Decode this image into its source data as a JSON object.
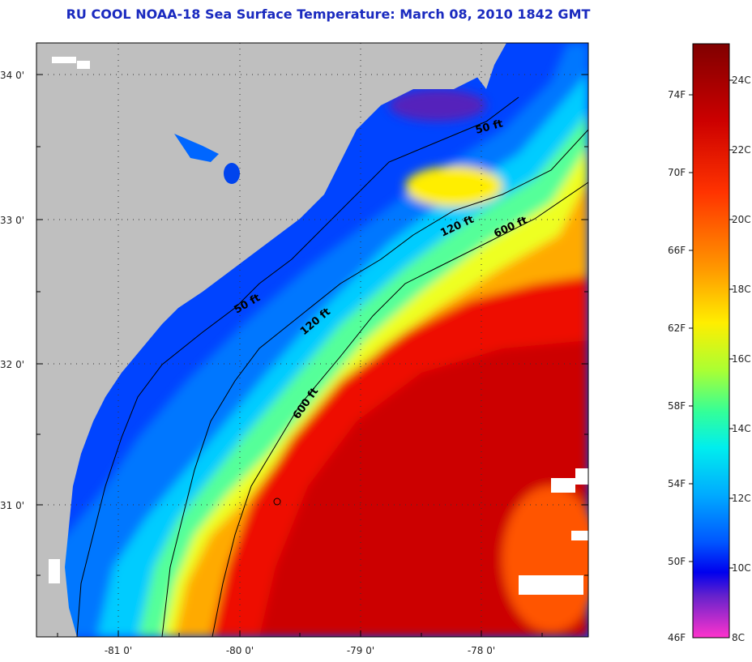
{
  "title": "RU COOL  NOAA-18  Sea Surface Temperature:  March 08, 2010 1842 GMT",
  "axes": {
    "lat_ticks": [
      "34 0'",
      "33 0'",
      "32 0'",
      "31 0'"
    ],
    "lon_ticks": [
      "-81 0'",
      "-80 0'",
      "-79 0'",
      "-78 0'"
    ]
  },
  "isobaths": [
    "50 ft",
    "50 ft",
    "120 ft",
    "120 ft",
    "600 ft",
    "600 ft"
  ],
  "colorbar": {
    "fahrenheit": [
      "74F",
      "70F",
      "66F",
      "62F",
      "58F",
      "54F",
      "50F",
      "46F"
    ],
    "celsius": [
      "24C",
      "22C",
      "20C",
      "18C",
      "16C",
      "14C",
      "12C",
      "10C",
      "8C"
    ],
    "colors": [
      "#800000",
      "#cc0000",
      "#ff3300",
      "#ff8800",
      "#ffdd00",
      "#ccff33",
      "#66ff66",
      "#33ffcc",
      "#00ccff",
      "#0088ff",
      "#0033ff",
      "#0000dd",
      "#7722cc",
      "#ff33cc"
    ]
  }
}
